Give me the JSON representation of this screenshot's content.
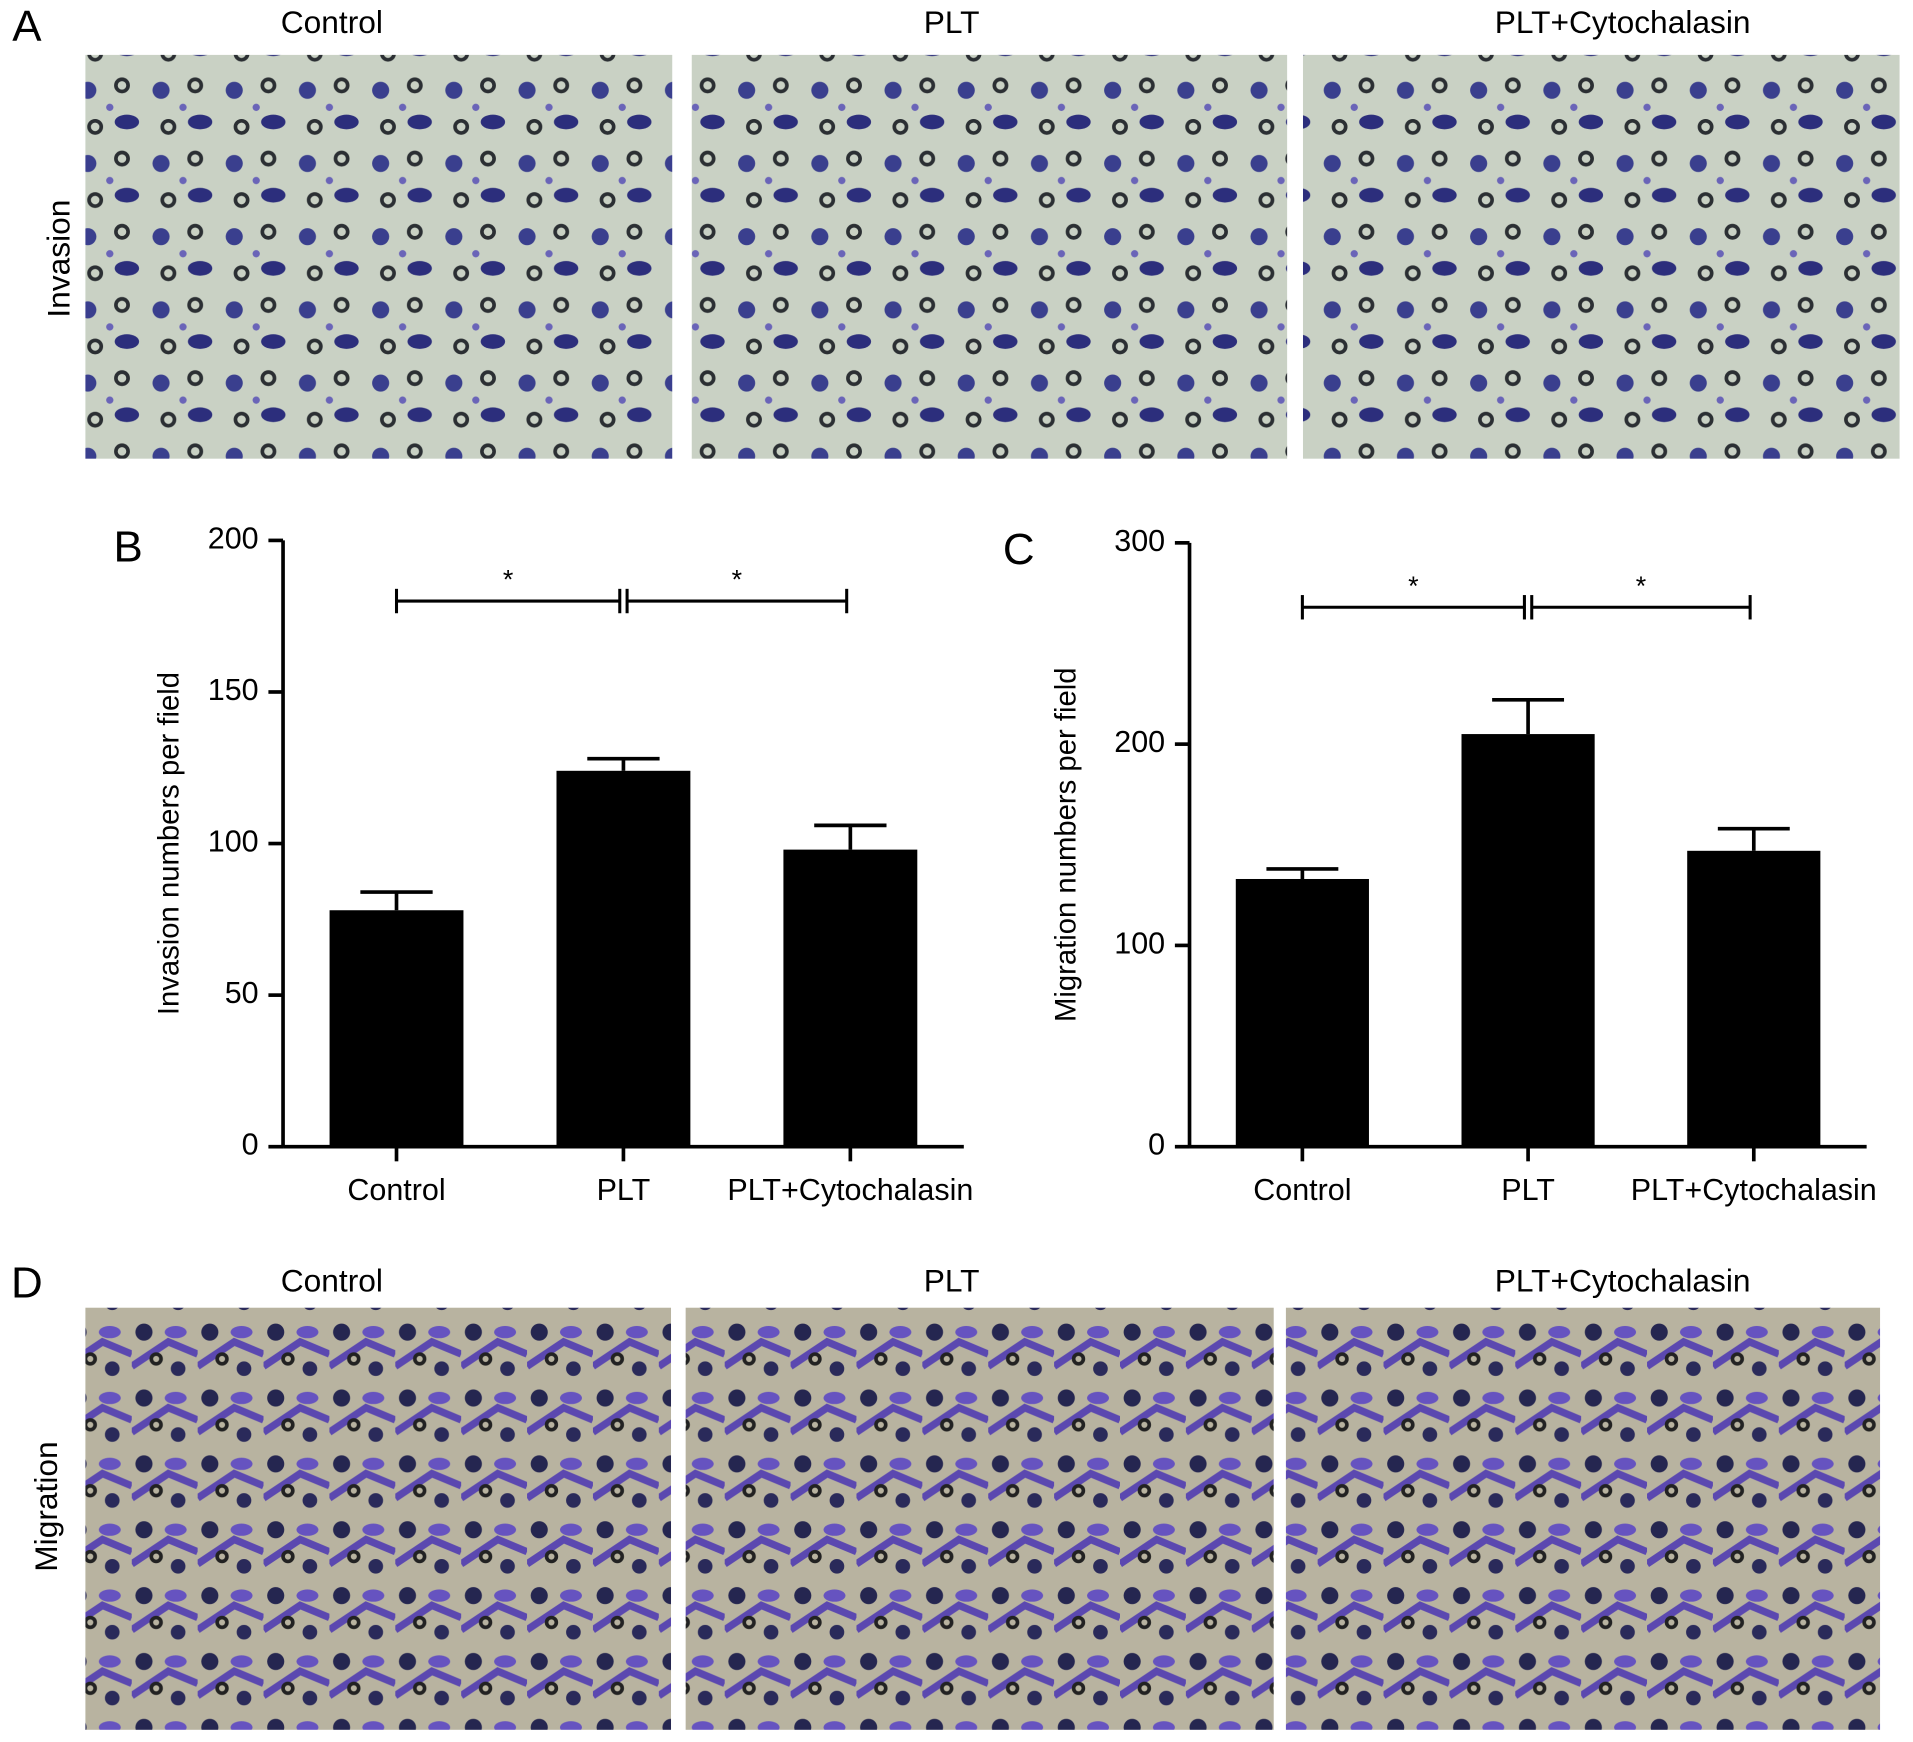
{
  "figure": {
    "panels": [
      {
        "label": "A",
        "row_label": "Invasion",
        "titles": [
          "Control",
          "PLT",
          "PLT+Cytochalasin"
        ]
      },
      {
        "label": "D",
        "row_label": "Migration",
        "titles": [
          "Control",
          "PLT",
          "PLT+Cytochalasin"
        ]
      }
    ]
  },
  "chart_data": [
    {
      "type": "bar",
      "panel_label": "B",
      "ylabel": "Invasion numbers per field",
      "categories": [
        "Control",
        "PLT",
        "PLT+Cytochalasin"
      ],
      "values": [
        78,
        124,
        98
      ],
      "errors": [
        6,
        4,
        8
      ],
      "color": "#000000",
      "ylim": [
        0,
        200
      ],
      "yticks": [
        0,
        50,
        100,
        150,
        200
      ],
      "annotations": [
        {
          "text": "*",
          "from": 0,
          "to": 1,
          "y": 180
        },
        {
          "text": "*",
          "from": 1,
          "to": 2,
          "y": 180
        }
      ]
    },
    {
      "type": "bar",
      "panel_label": "C",
      "ylabel": "Migration numbers per field",
      "categories": [
        "Control",
        "PLT",
        "PLT+Cytochalasin"
      ],
      "values": [
        133,
        205,
        147
      ],
      "errors": [
        5,
        17,
        11
      ],
      "color": "#000000",
      "ylim": [
        0,
        300
      ],
      "yticks": [
        0,
        100,
        200,
        300
      ],
      "annotations": [
        {
          "text": "*",
          "from": 0,
          "to": 1,
          "y": 268
        },
        {
          "text": "*",
          "from": 1,
          "to": 2,
          "y": 268
        }
      ]
    }
  ]
}
